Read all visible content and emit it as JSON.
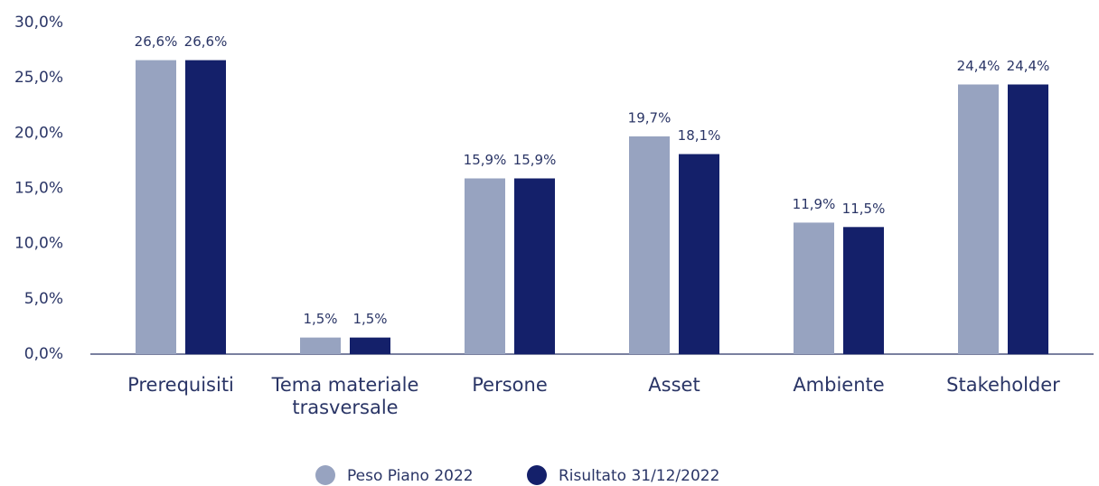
{
  "chart_data": {
    "type": "bar",
    "categories": [
      "Prerequisiti",
      "Tema materiale trasversale",
      "Persone",
      "Asset",
      "Ambiente",
      "Stakeholder"
    ],
    "series": [
      {
        "name": "Peso Piano 2022",
        "color": "#97a3c0",
        "values": [
          26.6,
          1.5,
          15.9,
          19.7,
          11.9,
          24.4
        ],
        "value_labels": [
          "26,6%",
          "1,5%",
          "15,9%",
          "19,7%",
          "11,9%",
          "24,4%"
        ]
      },
      {
        "name": "Risultato 31/12/2022",
        "color": "#14206a",
        "values": [
          26.6,
          1.5,
          15.9,
          18.1,
          11.5,
          24.4
        ],
        "value_labels": [
          "26,6%",
          "1,5%",
          "15,9%",
          "18,1%",
          "11,5%",
          "24,4%"
        ]
      }
    ],
    "ylim": [
      0,
      30
    ],
    "yticks": [
      {
        "value": 0,
        "label": "0,0%"
      },
      {
        "value": 5,
        "label": "5,0%"
      },
      {
        "value": 10,
        "label": "10,0%"
      },
      {
        "value": 15,
        "label": "15,0%"
      },
      {
        "value": 20,
        "label": "20,0%"
      },
      {
        "value": 25,
        "label": "25,0%"
      },
      {
        "value": 30,
        "label": "30,0%"
      }
    ],
    "grid": false,
    "legend": "bottom"
  }
}
